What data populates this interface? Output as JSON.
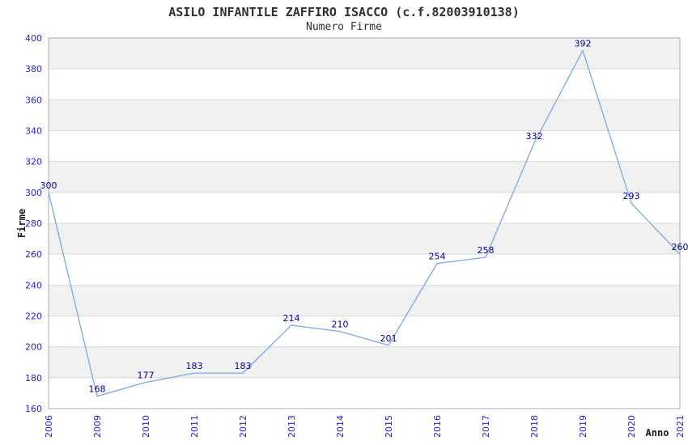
{
  "page": {
    "title": "ASILO INFANTILE ZAFFIRO ISACCO (c.f.82003910138)",
    "subtitle": "Numero Firme"
  },
  "chart_data": {
    "type": "line",
    "title": "ASILO INFANTILE ZAFFIRO ISACCO (c.f.82003910138)",
    "subtitle": "Numero Firme",
    "xlabel": "Anno",
    "ylabel": "Firme",
    "categories": [
      "2006",
      "2009",
      "2010",
      "2011",
      "2012",
      "2013",
      "2014",
      "2015",
      "2016",
      "2017",
      "2018",
      "2019",
      "2020",
      "2021"
    ],
    "series": [
      {
        "name": "Numero Firme",
        "values": [
          300,
          168,
          177,
          183,
          183,
          214,
          210,
          201,
          254,
          258,
          332,
          392,
          293,
          260
        ]
      }
    ],
    "ylim": [
      160,
      400
    ],
    "ytick_step": 20,
    "yticks": [
      160,
      180,
      200,
      220,
      240,
      260,
      280,
      300,
      320,
      340,
      360,
      380,
      400
    ],
    "grid": "horizontal-bands-alternating",
    "legend": "none",
    "data_labels_visible": true,
    "x_tick_rotation_degrees": -90,
    "colors": {
      "line": "#7aaade",
      "tick_label": "#2424cc",
      "data_label": "#00008b",
      "band_gray": "#f1f1f1",
      "band_white": "#ffffff",
      "gridline": "#dadada",
      "plot_border": "#aaaaaa",
      "title_text": "#2f2f2f"
    }
  }
}
